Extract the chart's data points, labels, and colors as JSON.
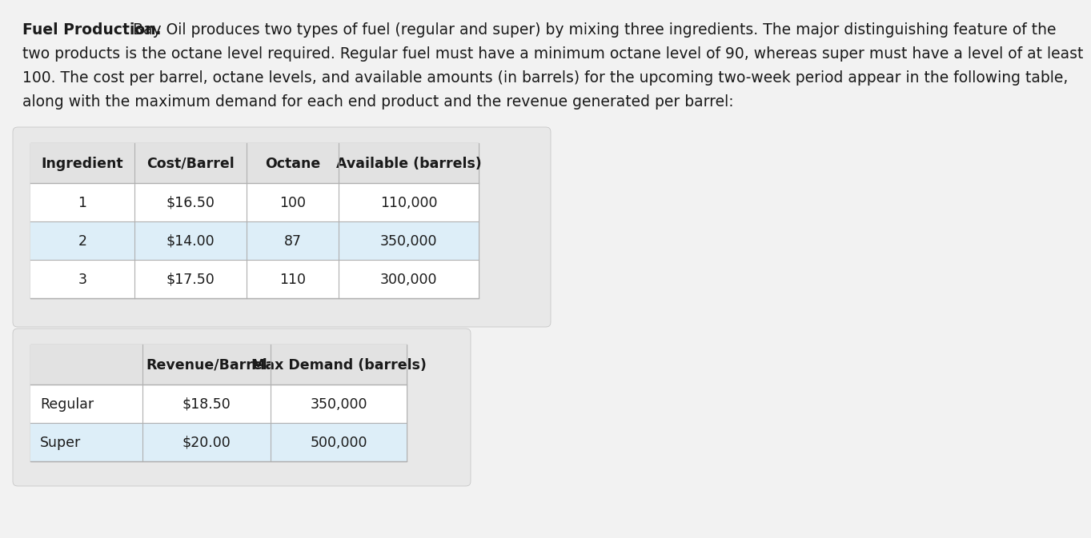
{
  "bg_color": "#f2f2f2",
  "white": "#ffffff",
  "header_bg": "#e2e2e2",
  "row_alt_bg": "#deeaf5",
  "border_color": "#b0b0b0",
  "text_color": "#1a1a1a",
  "outer_bg": "#e8e8e8",
  "paragraph_lines": [
    [
      "bold",
      "Fuel Production."
    ],
    [
      "normal",
      " Bay Oil produces two types of fuel (regular and super) by mixing three ingredients. The major distinguishing feature of the"
    ],
    [
      "normal",
      "two products is the octane level required. Regular fuel must have a minimum octane level of 90, whereas super must have a level of at least"
    ],
    [
      "normal",
      "100. The cost per barrel, octane levels, and available amounts (in barrels) for the upcoming two-week period appear in the following table,"
    ],
    [
      "normal",
      "along with the maximum demand for each end product and the revenue generated per barrel:"
    ]
  ],
  "table1_header": [
    "Ingredient",
    "Cost/Barrel",
    "Octane",
    "Available (barrels)"
  ],
  "table1_rows": [
    [
      "1",
      "$16.50",
      "100",
      "110,000"
    ],
    [
      "2",
      "$14.00",
      "87",
      "350,000"
    ],
    [
      "3",
      "$17.50",
      "110",
      "300,000"
    ]
  ],
  "table1_row_colors": [
    "#ffffff",
    "#ddeef8",
    "#ffffff"
  ],
  "table2_header": [
    "",
    "Revenue/Barrel",
    "Max Demand (barrels)"
  ],
  "table2_rows": [
    [
      "Regular",
      "$18.50",
      "350,000"
    ],
    [
      "Super",
      "$20.00",
      "500,000"
    ]
  ],
  "table2_row_colors": [
    "#ffffff",
    "#ddeef8"
  ],
  "font_size_text": 13.5,
  "font_size_table": 12.5
}
